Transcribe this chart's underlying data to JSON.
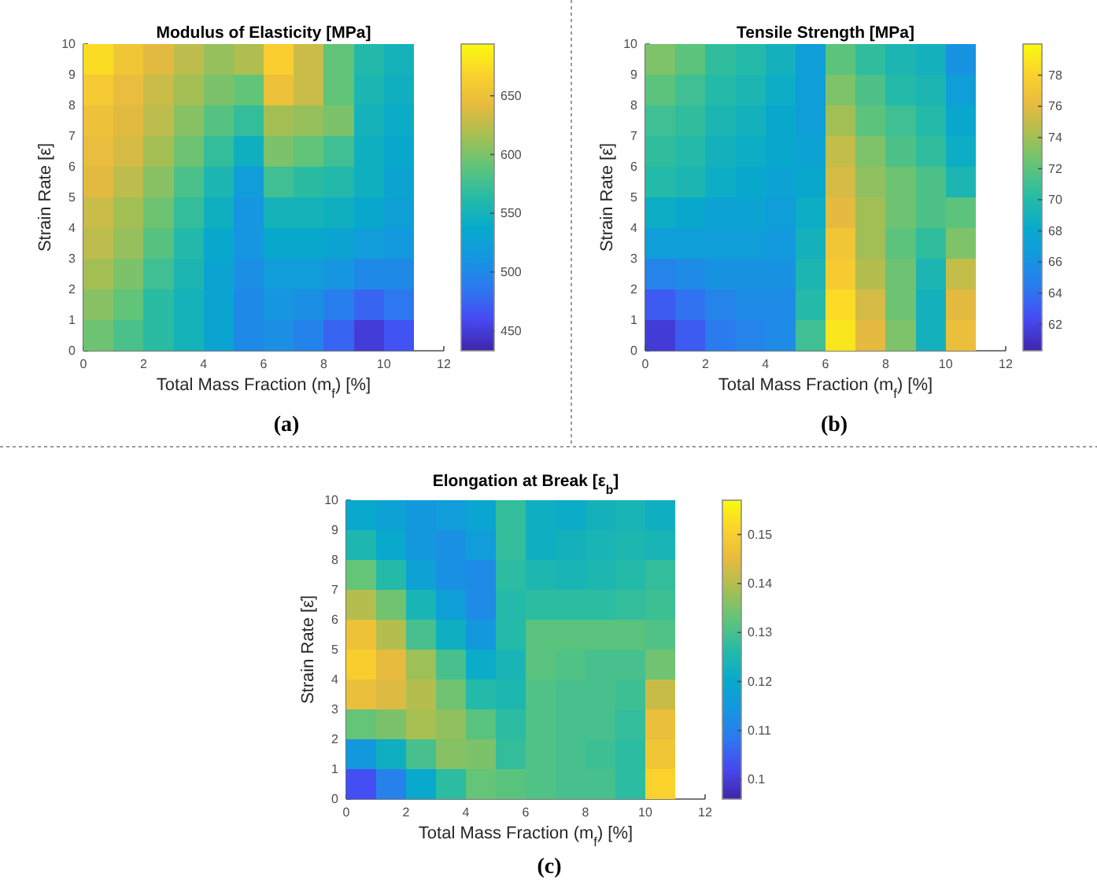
{
  "chart_data": [
    {
      "type": "heatmap",
      "title": "Modulus of Elasticity [MPa]",
      "xlabel": "Total Mass Fraction (m$_{f}$) [%]",
      "ylabel": "Strain Rate [ε̇]",
      "annotations": [
        "(a)"
      ],
      "xlim": [
        0,
        12
      ],
      "ylim": [
        0,
        10
      ],
      "xticks": [
        0,
        2,
        4,
        6,
        8,
        10,
        12
      ],
      "yticks": [
        0,
        1,
        2,
        3,
        4,
        5,
        6,
        7,
        8,
        9,
        10
      ],
      "clim": [
        433,
        694
      ],
      "cticks": [
        450,
        500,
        550,
        600,
        650
      ],
      "cells": [
        [
          675,
          655,
          640,
          625,
          610,
          620,
          665,
          630,
          590,
          560,
          550,
          null
        ],
        [
          660,
          645,
          630,
          615,
          600,
          590,
          650,
          630,
          590,
          555,
          545,
          null
        ],
        [
          650,
          640,
          625,
          605,
          585,
          570,
          615,
          610,
          600,
          550,
          540,
          null
        ],
        [
          645,
          635,
          615,
          595,
          570,
          545,
          600,
          590,
          575,
          545,
          535,
          null
        ],
        [
          640,
          625,
          605,
          580,
          555,
          520,
          575,
          565,
          560,
          545,
          530,
          null
        ],
        [
          630,
          615,
          595,
          570,
          545,
          510,
          550,
          550,
          545,
          535,
          525,
          null
        ],
        [
          625,
          610,
          585,
          560,
          535,
          510,
          535,
          535,
          530,
          520,
          515,
          null
        ],
        [
          615,
          600,
          575,
          555,
          530,
          505,
          520,
          520,
          510,
          500,
          500,
          null
        ],
        [
          605,
          590,
          565,
          550,
          530,
          500,
          510,
          505,
          490,
          475,
          485,
          null
        ],
        [
          595,
          580,
          565,
          550,
          530,
          500,
          505,
          495,
          475,
          450,
          465,
          null
        ]
      ]
    },
    {
      "type": "heatmap",
      "title": "Tensile Strength [MPa]",
      "xlabel": "Total Mass Fraction (m$_{f}$) [%]",
      "ylabel": "Strain Rate [ε̇]",
      "annotations": [
        "(b)"
      ],
      "xlim": [
        0,
        12
      ],
      "ylim": [
        0,
        10
      ],
      "xticks": [
        0,
        2,
        4,
        6,
        8,
        10,
        12
      ],
      "yticks": [
        0,
        1,
        2,
        3,
        4,
        5,
        6,
        7,
        8,
        9,
        10
      ],
      "clim": [
        60.3,
        80
      ],
      "cticks": [
        62,
        64,
        66,
        68,
        70,
        72,
        74,
        76,
        78
      ],
      "cells": [
        [
          73,
          72,
          70.5,
          70,
          69,
          67,
          72,
          70.5,
          69.5,
          69,
          66,
          null
        ],
        [
          72,
          71,
          70,
          69.5,
          68.5,
          67,
          73,
          71.5,
          70,
          69.5,
          67,
          null
        ],
        [
          71,
          70.5,
          69.5,
          69,
          68,
          67,
          74,
          72,
          71,
          70,
          68,
          null
        ],
        [
          70.5,
          70,
          69,
          68.5,
          68,
          67.5,
          75,
          73,
          71.5,
          70.5,
          68.5,
          null
        ],
        [
          70,
          69.5,
          68.5,
          68,
          67.5,
          68,
          75.5,
          73.5,
          72.5,
          71.5,
          69.5,
          null
        ],
        [
          68.5,
          68,
          67.5,
          67.5,
          67,
          68.5,
          76,
          74,
          72.5,
          71.5,
          72,
          null
        ],
        [
          67,
          67,
          67,
          67,
          66.5,
          69,
          77,
          74,
          72,
          70.5,
          73,
          null
        ],
        [
          65,
          65.5,
          66,
          66,
          66,
          69.5,
          77.5,
          74.5,
          72.5,
          69.5,
          75,
          null
        ],
        [
          63,
          64,
          65,
          65.5,
          65.5,
          70,
          78.5,
          75.5,
          72.5,
          69,
          76,
          null
        ],
        [
          61.5,
          63,
          64.5,
          65,
          65.5,
          71,
          79,
          76,
          73,
          69,
          76.5,
          null
        ]
      ]
    },
    {
      "type": "heatmap",
      "title": "Elongation at Break [ε$_{b}$]",
      "xlabel": "Total Mass Fraction (m$_{f}$) [%]",
      "ylabel": "Strain Rate [ε̇]",
      "annotations": [
        "(c)"
      ],
      "xlim": [
        0,
        12
      ],
      "ylim": [
        0,
        10
      ],
      "xticks": [
        0,
        2,
        4,
        6,
        8,
        10,
        12
      ],
      "yticks": [
        0,
        1,
        2,
        3,
        4,
        5,
        6,
        7,
        8,
        9,
        10
      ],
      "clim": [
        0.096,
        0.157
      ],
      "cticks": [
        0.1,
        0.11,
        0.12,
        0.13,
        0.14,
        0.15
      ],
      "cells": [
        [
          0.12,
          0.118,
          0.115,
          0.116,
          0.119,
          0.128,
          0.122,
          0.121,
          0.123,
          0.124,
          0.122,
          null
        ],
        [
          0.125,
          0.12,
          0.115,
          0.113,
          0.116,
          0.128,
          0.122,
          0.123,
          0.124,
          0.125,
          0.124,
          null
        ],
        [
          0.133,
          0.126,
          0.118,
          0.113,
          0.112,
          0.127,
          0.125,
          0.124,
          0.125,
          0.126,
          0.128,
          null
        ],
        [
          0.14,
          0.134,
          0.124,
          0.117,
          0.112,
          0.126,
          0.127,
          0.127,
          0.127,
          0.128,
          0.129,
          null
        ],
        [
          0.147,
          0.14,
          0.13,
          0.122,
          0.115,
          0.126,
          0.132,
          0.132,
          0.132,
          0.132,
          0.131,
          null
        ],
        [
          0.15,
          0.145,
          0.138,
          0.13,
          0.121,
          0.124,
          0.132,
          0.131,
          0.13,
          0.13,
          0.134,
          null
        ],
        [
          0.146,
          0.144,
          0.14,
          0.134,
          0.126,
          0.125,
          0.131,
          0.13,
          0.13,
          0.129,
          0.142,
          null
        ],
        [
          0.133,
          0.135,
          0.139,
          0.137,
          0.132,
          0.127,
          0.131,
          0.13,
          0.13,
          0.128,
          0.146,
          null
        ],
        [
          0.115,
          0.122,
          0.13,
          0.136,
          0.135,
          0.128,
          0.131,
          0.13,
          0.129,
          0.127,
          0.148,
          null
        ],
        [
          0.103,
          0.11,
          0.12,
          0.127,
          0.133,
          0.132,
          0.131,
          0.13,
          0.13,
          0.127,
          0.151,
          null
        ]
      ]
    }
  ]
}
